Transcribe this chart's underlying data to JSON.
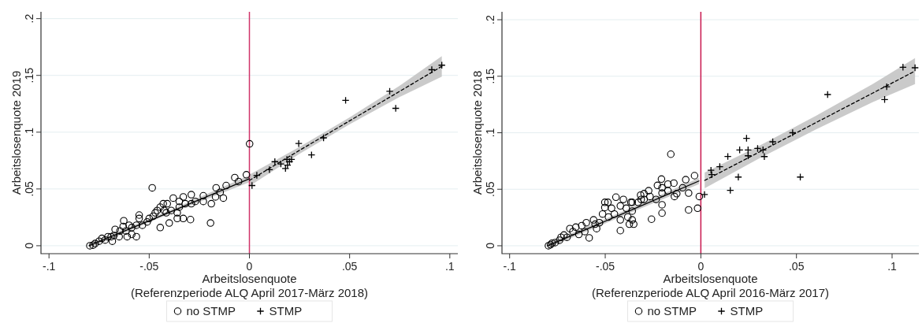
{
  "chart_data": [
    {
      "type": "scatter",
      "xlabel": "Arbeitslosenquote\n(Referenzperiode ALQ April 2017-März 2018)",
      "ylabel": "Arbeitslosenquote 2019",
      "xlim": [
        -0.104,
        0.104
      ],
      "ylim": [
        -0.007,
        0.206
      ],
      "xticks": [
        {
          "value": -0.1,
          "label": "-.1"
        },
        {
          "value": -0.05,
          "label": "-.05"
        },
        0,
        {
          "value": 0.05,
          "label": ".05"
        },
        {
          "value": 0.1,
          "label": ".1"
        }
      ],
      "yticks": [
        0,
        {
          "value": 0.05,
          "label": ".05"
        },
        {
          "value": 0.1,
          "label": ".1"
        },
        {
          "value": 0.15,
          "label": ".15"
        },
        {
          "value": 0.2,
          "label": ".2"
        }
      ],
      "grid": "y",
      "legend": "bottom",
      "ref_lines": [
        {
          "axis": "x",
          "value": 0,
          "color": "#d0346a"
        }
      ],
      "series": [
        {
          "type": "line",
          "color": "#000000",
          "line_style": "solid",
          "marker": "none",
          "x": [
            -0.08,
            -0.04,
            0
          ],
          "values": [
            0.0,
            0.0294,
            0.059
          ],
          "lower": [
            -0.002,
            0.028,
            0.056
          ],
          "upper": [
            0.002,
            0.031,
            0.062
          ]
        },
        {
          "type": "line",
          "color": "#000000",
          "line_style": "dashed",
          "marker": "none",
          "x": [
            0,
            0.025,
            0.05,
            0.075,
            0.096
          ],
          "values": [
            0.0575,
            0.084,
            0.11,
            0.136,
            0.158
          ],
          "lower": [
            0.0525,
            0.081,
            0.107,
            0.131,
            0.149
          ],
          "upper": [
            0.0625,
            0.087,
            0.113,
            0.141,
            0.167
          ]
        },
        {
          "name": "no STMP",
          "marker": "circle",
          "color": "#000000",
          "x": [
            0.0001,
            -0.0015,
            -0.0073,
            -0.0054,
            -0.0116,
            -0.0166,
            -0.0485,
            -0.0194,
            -0.0294,
            -0.013,
            -0.019,
            -0.023,
            -0.029,
            -0.033,
            -0.038,
            -0.041,
            -0.0445,
            -0.047,
            -0.0445,
            -0.04,
            -0.036,
            -0.0415,
            -0.035,
            -0.032,
            -0.027,
            -0.05,
            -0.051,
            -0.055,
            -0.0564,
            -0.0587,
            -0.061,
            -0.063,
            -0.0646,
            -0.0676,
            -0.0684,
            -0.0706,
            -0.072,
            -0.075,
            -0.077,
            -0.0796,
            -0.078,
            -0.0736,
            -0.067,
            -0.0627,
            -0.06,
            -0.055,
            -0.0534,
            -0.048,
            -0.043,
            -0.0425,
            -0.039,
            -0.035,
            -0.029,
            -0.023,
            -0.0169,
            -0.0146,
            -0.033,
            -0.036,
            -0.0587,
            -0.069,
            -0.065,
            -0.0616,
            -0.0564,
            -0.046
          ],
          "values": [
            0.0897,
            0.0625,
            0.06,
            0.0565,
            0.053,
            0.051,
            0.051,
            0.02,
            0.023,
            0.042,
            0.037,
            0.044,
            0.045,
            0.043,
            0.042,
            0.037,
            0.034,
            0.029,
            0.016,
            0.02,
            0.024,
            0.029,
            0.034,
            0.037,
            0.039,
            0.024,
            0.021,
            0.024,
            0.008,
            0.016,
            0.008,
            0.017,
            0.013,
            0.009,
            0.004,
            0.008,
            0.005,
            0.004,
            0.002,
            0.0,
            0.0005,
            0.0065,
            0.0144,
            0.022,
            0.018,
            0.027,
            0.018,
            0.026,
            0.037,
            0.031,
            0.031,
            0.039,
            0.037,
            0.039,
            0.043,
            0.047,
            0.024,
            0.029,
            0.01,
            0.008,
            0.008,
            0.013,
            0.018,
            0.031
          ]
        },
        {
          "name": "STMP",
          "marker": "cross",
          "color": "#000000",
          "x": [
            0.0037,
            0.0013,
            0.01,
            0.0127,
            0.0157,
            0.018,
            0.0187,
            0.02,
            0.021,
            0.019,
            0.0246,
            0.031,
            0.037,
            0.048,
            0.07,
            0.073,
            0.091,
            0.096
          ],
          "values": [
            0.062,
            0.053,
            0.067,
            0.074,
            0.072,
            0.068,
            0.076,
            0.074,
            0.076,
            0.071,
            0.09,
            0.08,
            0.095,
            0.128,
            0.136,
            0.121,
            0.155,
            0.159
          ]
        }
      ]
    },
    {
      "type": "scatter",
      "xlabel": "Arbeitslosenquote\n(Referenzperiode ALQ April 2016-März 2017)",
      "ylabel": "Arbeitslosenquote 2018",
      "xlim": [
        -0.104,
        0.114
      ],
      "ylim": [
        -0.007,
        0.207
      ],
      "xticks": [
        {
          "value": -0.1,
          "label": "-.1"
        },
        {
          "value": -0.05,
          "label": "-.05"
        },
        0,
        {
          "value": 0.05,
          "label": ".05"
        },
        {
          "value": 0.1,
          "label": ".1"
        }
      ],
      "yticks": [
        0,
        {
          "value": 0.05,
          "label": ".05"
        },
        {
          "value": 0.1,
          "label": ".1"
        },
        {
          "value": 0.15,
          "label": ".15"
        },
        {
          "value": 0.2,
          "label": ".2"
        }
      ],
      "grid": "y",
      "legend": "bottom",
      "ref_lines": [
        {
          "axis": "x",
          "value": 0,
          "color": "#c8164e"
        }
      ],
      "series": [
        {
          "type": "line",
          "color": "#000000",
          "line_style": "solid",
          "marker": "none",
          "x": [
            -0.08,
            -0.04,
            -0.001
          ],
          "values": [
            0.0,
            0.029,
            0.0573
          ],
          "lower": [
            -0.002,
            0.027,
            0.0545
          ],
          "upper": [
            0.002,
            0.031,
            0.06
          ]
        },
        {
          "type": "line",
          "color": "#000000",
          "line_style": "dashed",
          "marker": "none",
          "x": [
            0.002,
            0.03,
            0.06,
            0.09,
            0.112
          ],
          "values": [
            0.0578,
            0.0824,
            0.1088,
            0.1352,
            0.1546
          ],
          "lower": [
            0.0508,
            0.0769,
            0.1028,
            0.1272,
            0.1431
          ],
          "upper": [
            0.0648,
            0.0879,
            0.1148,
            0.1432,
            0.1661
          ]
        },
        {
          "name": "no STMP",
          "marker": "circle",
          "color": "#000000",
          "x": [
            -0.0157,
            -0.0033,
            -0.0079,
            -0.0008,
            -0.0017,
            -0.0064,
            -0.0203,
            -0.0203,
            -0.0258,
            -0.0206,
            -0.0227,
            -0.0172,
            -0.0141,
            -0.0126,
            -0.0064,
            -0.0095,
            -0.0138,
            -0.0234,
            -0.0273,
            -0.0297,
            -0.0315,
            -0.0328,
            -0.0359,
            -0.0359,
            -0.0351,
            -0.0374,
            -0.0421,
            -0.0405,
            -0.0444,
            -0.0502,
            -0.0486,
            -0.0502,
            -0.0452,
            -0.039,
            -0.0421,
            -0.0483,
            -0.053,
            -0.0561,
            -0.0545,
            -0.0584,
            -0.0607,
            -0.0623,
            -0.0638,
            -0.0669,
            -0.0685,
            -0.07,
            -0.0716,
            -0.0739,
            -0.0762,
            -0.0778,
            -0.0797,
            -0.0786,
            -0.0731,
            -0.0654,
            -0.0599,
            -0.0514,
            -0.0467,
            -0.0421,
            -0.0366,
            -0.0312,
            -0.0297,
            -0.0266,
            -0.0203,
            -0.0172,
            -0.0359,
            -0.0553,
            -0.0382,
            -0.0203
          ],
          "values": [
            0.081,
            0.062,
            0.0585,
            0.0436,
            0.0332,
            0.0317,
            0.0289,
            0.0363,
            0.0235,
            0.059,
            0.0534,
            0.0546,
            0.0554,
            0.0461,
            0.0466,
            0.0513,
            0.0436,
            0.041,
            0.0487,
            0.0461,
            0.0448,
            0.0384,
            0.0384,
            0.0229,
            0.0191,
            0.0191,
            0.0134,
            0.041,
            0.043,
            0.0384,
            0.0384,
            0.0338,
            0.0281,
            0.0332,
            0.0229,
            0.0255,
            0.0204,
            0.0229,
            0.0152,
            0.007,
            0.0126,
            0.0178,
            0.01,
            0.0126,
            0.0152,
            0.0075,
            0.0095,
            0.0049,
            0.0028,
            0.0023,
            0.0,
            0.001,
            0.0075,
            0.0165,
            0.0204,
            0.0281,
            0.0332,
            0.0353,
            0.0384,
            0.041,
            0.041,
            0.0436,
            0.0466,
            0.0487,
            0.0307,
            0.0191,
            0.0255,
            0.0513
          ]
        },
        {
          "name": "STMP",
          "marker": "cross",
          "color": "#000000",
          "x": [
            0.0019,
            0.0053,
            0.0057,
            0.0099,
            0.0141,
            0.0154,
            0.0196,
            0.0203,
            0.0239,
            0.0247,
            0.0247,
            0.0297,
            0.0325,
            0.0332,
            0.0376,
            0.048,
            0.052,
            0.0663,
            0.0961,
            0.0972,
            0.1057,
            0.112
          ],
          "values": [
            0.0454,
            0.0668,
            0.0629,
            0.07,
            0.079,
            0.049,
            0.0608,
            0.0848,
            0.0951,
            0.0848,
            0.0796,
            0.0861,
            0.0848,
            0.0789,
            0.092,
            0.1,
            0.0608,
            0.1338,
            0.1294,
            0.1407,
            0.158,
            0.1575
          ]
        }
      ]
    }
  ]
}
